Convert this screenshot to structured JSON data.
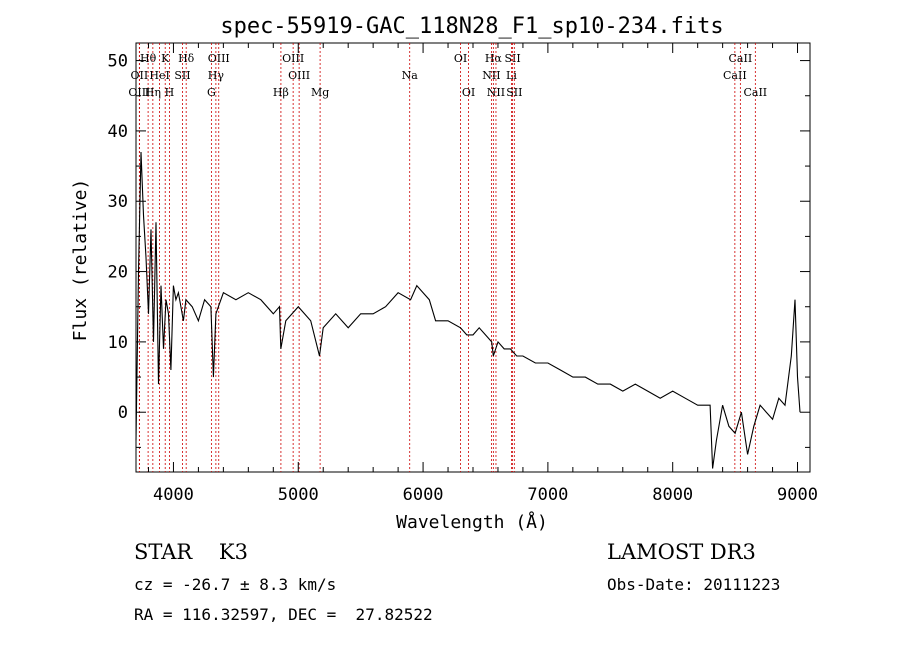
{
  "chart_data": {
    "type": "line",
    "title": "spec-55919-GAC_118N28_F1_sp10-234.fits",
    "xlabel": "Wavelength (Å)",
    "ylabel": "Flux (relative)",
    "xlim": [
      3700,
      9100
    ],
    "ylim": [
      -8.5,
      52.5
    ],
    "xticks": [
      4000,
      5000,
      6000,
      7000,
      8000,
      9000
    ],
    "yticks": [
      0,
      10,
      20,
      30,
      40,
      50
    ],
    "grid": false,
    "series": [
      {
        "name": "flux",
        "x": [
          3700,
          3720,
          3740,
          3760,
          3780,
          3800,
          3820,
          3840,
          3860,
          3880,
          3900,
          3920,
          3940,
          3960,
          3980,
          4000,
          4020,
          4040,
          4060,
          4080,
          4100,
          4150,
          4200,
          4250,
          4300,
          4320,
          4340,
          4360,
          4400,
          4500,
          4600,
          4700,
          4800,
          4850,
          4860,
          4900,
          5000,
          5100,
          5170,
          5200,
          5300,
          5400,
          5500,
          5600,
          5700,
          5800,
          5900,
          5950,
          6000,
          6050,
          6100,
          6200,
          6300,
          6350,
          6400,
          6450,
          6500,
          6550,
          6563,
          6600,
          6650,
          6700,
          6750,
          6800,
          6900,
          7000,
          7100,
          7200,
          7300,
          7400,
          7500,
          7600,
          7700,
          7800,
          7900,
          8000,
          8100,
          8200,
          8300,
          8320,
          8350,
          8400,
          8450,
          8500,
          8550,
          8600,
          8650,
          8700,
          8750,
          8800,
          8850,
          8900,
          8950,
          8980,
          9000,
          9020
        ],
        "y": [
          -4,
          20,
          37,
          28,
          22,
          14,
          26,
          10,
          27,
          4,
          18,
          9,
          16,
          14,
          6,
          18,
          16,
          17,
          15,
          13,
          16,
          15,
          13,
          16,
          15,
          5,
          14,
          15,
          17,
          16,
          17,
          16,
          14,
          15,
          9,
          13,
          15,
          13,
          8,
          12,
          14,
          12,
          14,
          14,
          15,
          17,
          16,
          18,
          17,
          16,
          13,
          13,
          12,
          11,
          11,
          12,
          11,
          10,
          8,
          10,
          9,
          9,
          8,
          8,
          7,
          7,
          6,
          5,
          5,
          4,
          4,
          3,
          4,
          3,
          2,
          3,
          2,
          1,
          1,
          -8,
          -4,
          1,
          -2,
          -3,
          0,
          -6,
          -2,
          1,
          0,
          -1,
          2,
          1,
          8,
          16,
          5,
          0
        ]
      }
    ],
    "line_markers": [
      {
        "label": "OII",
        "x": 3727,
        "row": 2
      },
      {
        "label": "Hθ",
        "x": 3797,
        "row": 1
      },
      {
        "label": "OIII",
        "x": 3727,
        "row": 3
      },
      {
        "label": "HeI",
        "x": 3889,
        "row": 2
      },
      {
        "label": "Hη",
        "x": 3835,
        "row": 3
      },
      {
        "label": "K",
        "x": 3934,
        "row": 1
      },
      {
        "label": "H",
        "x": 3968,
        "row": 3
      },
      {
        "label": "SII",
        "x": 4072,
        "row": 2
      },
      {
        "label": "Hδ",
        "x": 4102,
        "row": 1
      },
      {
        "label": "OIII",
        "x": 4363,
        "row": 1
      },
      {
        "label": "Hγ",
        "x": 4340,
        "row": 2
      },
      {
        "label": "G",
        "x": 4304,
        "row": 3
      },
      {
        "label": "OIII",
        "x": 4959,
        "row": 1
      },
      {
        "label": "OIII",
        "x": 5007,
        "row": 2
      },
      {
        "label": "Hβ",
        "x": 4861,
        "row": 3
      },
      {
        "label": "Mg",
        "x": 5175,
        "row": 3
      },
      {
        "label": "Na",
        "x": 5893,
        "row": 2
      },
      {
        "label": "OI",
        "x": 6300,
        "row": 1
      },
      {
        "label": "OI",
        "x": 6364,
        "row": 3
      },
      {
        "label": "Hα",
        "x": 6563,
        "row": 1
      },
      {
        "label": "SII",
        "x": 6717,
        "row": 1
      },
      {
        "label": "NII",
        "x": 6548,
        "row": 2
      },
      {
        "label": "Li",
        "x": 6708,
        "row": 2
      },
      {
        "label": "NII",
        "x": 6584,
        "row": 3
      },
      {
        "label": "SII",
        "x": 6731,
        "row": 3
      },
      {
        "label": "CaII",
        "x": 8542,
        "row": 1
      },
      {
        "label": "CaII",
        "x": 8498,
        "row": 2
      },
      {
        "label": "CaII",
        "x": 8662,
        "row": 3
      }
    ]
  },
  "info": {
    "classification": "STAR    K3",
    "survey": "LAMOST DR3",
    "redshift": "cz = -26.7 ± 8.3 km/s",
    "obs_date": "Obs-Date: 20111223",
    "coords": "RA = 116.32597, DEC =  27.82522"
  },
  "colors": {
    "spectrum": "#000000",
    "marker_line": "#cc0000",
    "axes": "#000000"
  }
}
